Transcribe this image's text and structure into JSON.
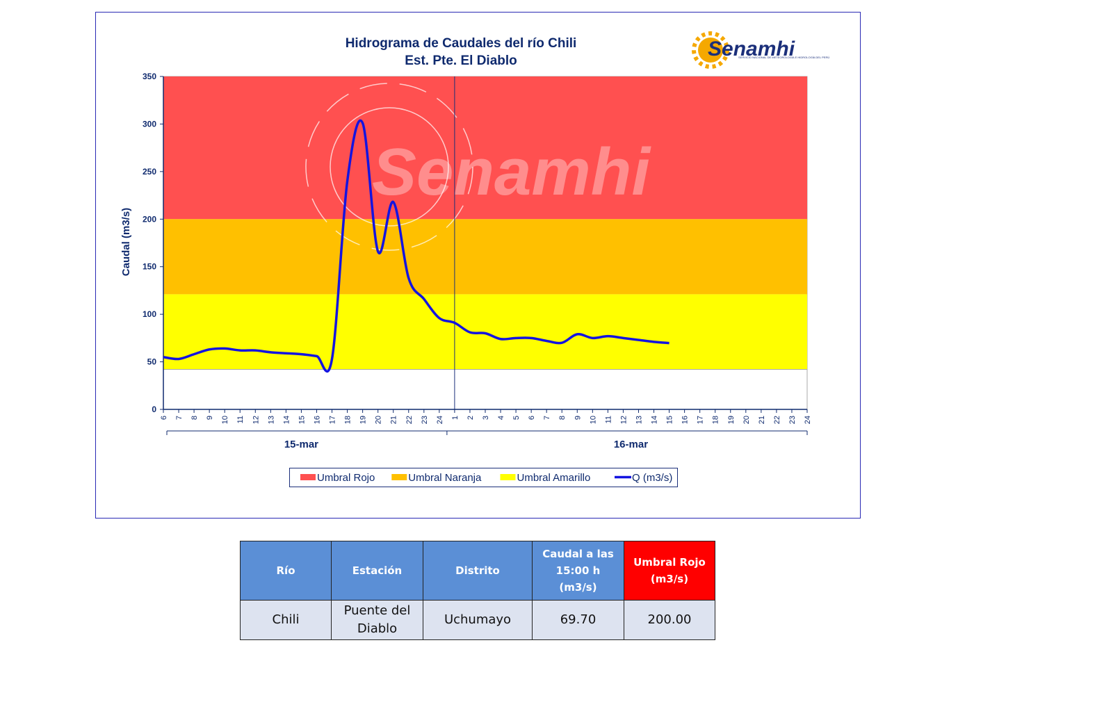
{
  "chart_data": {
    "type": "line",
    "title": "Hidrograma de Caudales del río Chili",
    "subtitle": "Est. Pte. El Diablo",
    "logo": "Senamhi",
    "logo_caption": "SERVICIO NACIONAL DE METEOROLOGÍA E HIDROLOGÍA DEL PERÚ",
    "watermark": "Senamhi",
    "y_label": "Caudal  (m3/s)",
    "categories": [
      "6",
      "7",
      "8",
      "9",
      "10",
      "11",
      "12",
      "13",
      "14",
      "15",
      "16",
      "17",
      "18",
      "19",
      "20",
      "21",
      "22",
      "23",
      "24",
      "1",
      "2",
      "3",
      "4",
      "5",
      "6",
      "7",
      "8",
      "9",
      "10",
      "11",
      "12",
      "13",
      "14",
      "15",
      "16",
      "17",
      "18",
      "19",
      "20",
      "21",
      "22",
      "23",
      "24"
    ],
    "groups": [
      "15-mar",
      "16-mar"
    ],
    "bands": [
      {
        "name": "Umbral Rojo",
        "color": "#ff5050",
        "from": 200,
        "to": 350
      },
      {
        "name": "Umbral Naranja",
        "color": "#ffc000",
        "from": 121,
        "to": 200
      },
      {
        "name": "Umbral Amarillo",
        "color": "#ffff00",
        "from": 42,
        "to": 121
      }
    ],
    "series": [
      {
        "name": "Q (m3/s)",
        "color": "#1414e0",
        "values": [
          55,
          53,
          58,
          63,
          64,
          62,
          62,
          60,
          59,
          58,
          56,
          53,
          240,
          301,
          166,
          218,
          138,
          116,
          96,
          91,
          81,
          80,
          74,
          75,
          75,
          72,
          70,
          79,
          75,
          77,
          75,
          73,
          71,
          69.7,
          null,
          null,
          null,
          null,
          null,
          null,
          null,
          null,
          null
        ]
      }
    ],
    "ylim": [
      0,
      350
    ],
    "yticks": [
      0,
      50,
      100,
      150,
      200,
      250,
      300,
      350
    ]
  },
  "table": {
    "header": [
      "Río",
      "Estación",
      "Distrito",
      "Caudal a las 15:00 h (m3/s)",
      "Umbral Rojo (m3/s)"
    ],
    "rows": [
      [
        "Chili",
        "Puente del Diablo",
        "Uchumayo",
        "69.70",
        "200.00"
      ]
    ]
  }
}
